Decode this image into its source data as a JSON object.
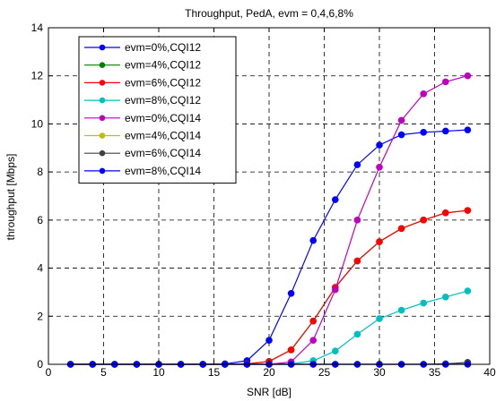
{
  "chart_data": {
    "type": "line",
    "title": "Throughput, PedA, evm = 0,4,6,8%",
    "xlabel": "SNR [dB]",
    "ylabel": "throughput [Mbps]",
    "xlim": [
      0,
      40
    ],
    "ylim": [
      0,
      14
    ],
    "xticks": [
      0,
      5,
      10,
      15,
      20,
      25,
      30,
      35,
      40
    ],
    "yticks": [
      0,
      2,
      4,
      6,
      8,
      10,
      12,
      14
    ],
    "grid": true,
    "legend_position": "top-left",
    "x": [
      2,
      4,
      6,
      8,
      10,
      12,
      14,
      16,
      18,
      20,
      22,
      24,
      26,
      28,
      30,
      32,
      34,
      36,
      38
    ],
    "series": [
      {
        "name": "evm=0%,CQI12",
        "color": "#0000ff",
        "values": [
          0,
          0,
          0,
          0,
          0,
          0,
          0,
          0.02,
          0.15,
          1.0,
          2.95,
          5.15,
          6.85,
          8.3,
          9.12,
          9.55,
          9.65,
          9.7,
          9.75
        ]
      },
      {
        "name": "evm=4%,CQI12",
        "color": "#008000",
        "values": [
          0,
          0,
          0,
          0,
          0,
          0,
          0,
          0,
          0.02,
          0.12,
          0.6,
          1.8,
          3.2,
          4.3,
          5.1,
          5.65,
          6.0,
          6.3,
          6.4
        ]
      },
      {
        "name": "evm=6%,CQI12",
        "color": "#ff0000",
        "values": [
          0,
          0,
          0,
          0,
          0,
          0,
          0,
          0,
          0.02,
          0.12,
          0.6,
          1.8,
          3.2,
          4.3,
          5.1,
          5.65,
          6.0,
          6.3,
          6.4
        ]
      },
      {
        "name": "evm=8%,CQI12",
        "color": "#00bfbf",
        "values": [
          0,
          0,
          0,
          0,
          0,
          0,
          0,
          0,
          0,
          0,
          0.02,
          0.15,
          0.55,
          1.25,
          1.9,
          2.25,
          2.55,
          2.8,
          3.05
        ]
      },
      {
        "name": "evm=0%,CQI14",
        "color": "#bf00bf",
        "values": [
          0,
          0,
          0,
          0,
          0,
          0,
          0,
          0,
          0,
          0,
          0.1,
          1.0,
          3.1,
          6.0,
          8.2,
          10.15,
          11.25,
          11.75,
          12.0
        ]
      },
      {
        "name": "evm=4%,CQI14",
        "color": "#bfbf00",
        "values": [
          0,
          0,
          0,
          0,
          0,
          0,
          0,
          0,
          0,
          0,
          0,
          0,
          0,
          0,
          0,
          0,
          0,
          0,
          0.02
        ]
      },
      {
        "name": "evm=6%,CQI14",
        "color": "#404040",
        "values": [
          0,
          0,
          0,
          0,
          0,
          0,
          0,
          0,
          0,
          0,
          0,
          0,
          0,
          0,
          0,
          0,
          0,
          0.02,
          0.08
        ]
      },
      {
        "name": "evm=8%,CQI14",
        "color": "#0000ff",
        "values": [
          0,
          0,
          0,
          0,
          0,
          0,
          0,
          0,
          0,
          0,
          0,
          0,
          0,
          0,
          0,
          0,
          0,
          0,
          0
        ]
      }
    ]
  }
}
